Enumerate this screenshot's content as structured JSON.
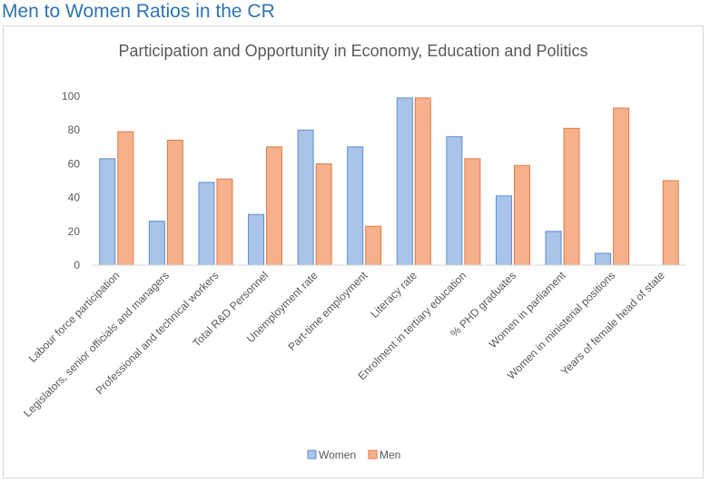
{
  "page_title": "Men to Women Ratios in the CR",
  "colors": {
    "women_fill": "#a9c4e8",
    "women_stroke": "#5b8fd1",
    "men_fill": "#f6b08c",
    "men_stroke": "#e07b45",
    "grid": "#d9d9d9",
    "axis_text": "#595959",
    "title_text": "#595959",
    "page_title": "#2e74b5"
  },
  "chart_data": {
    "type": "bar",
    "title": "Participation and Opportunity in Economy, Education and Politics",
    "xlabel": "",
    "ylabel": "",
    "ylim": [
      0,
      100
    ],
    "yticks": [
      "0",
      "20",
      "40",
      "60",
      "80",
      "100"
    ],
    "grid": false,
    "legend_position": "bottom",
    "categories": [
      "Labour force participation",
      "Legislators, senior officials and managers",
      "Professional and technical workers",
      "Total R&D Personnel",
      "Unemployment rate",
      "Part-time employment",
      "Literacy rate",
      "Enrolment in tertiary education",
      "% PHD graduates",
      "Women in parliament",
      "Women in ministerial positions",
      "Years of female head of state"
    ],
    "series": [
      {
        "name": "Women",
        "values": [
          63,
          26,
          49,
          30,
          80,
          70,
          99,
          76,
          41,
          20,
          7,
          0
        ]
      },
      {
        "name": "Men",
        "values": [
          79,
          74,
          51,
          70,
          60,
          23,
          99,
          63,
          59,
          81,
          93,
          50
        ]
      }
    ]
  }
}
